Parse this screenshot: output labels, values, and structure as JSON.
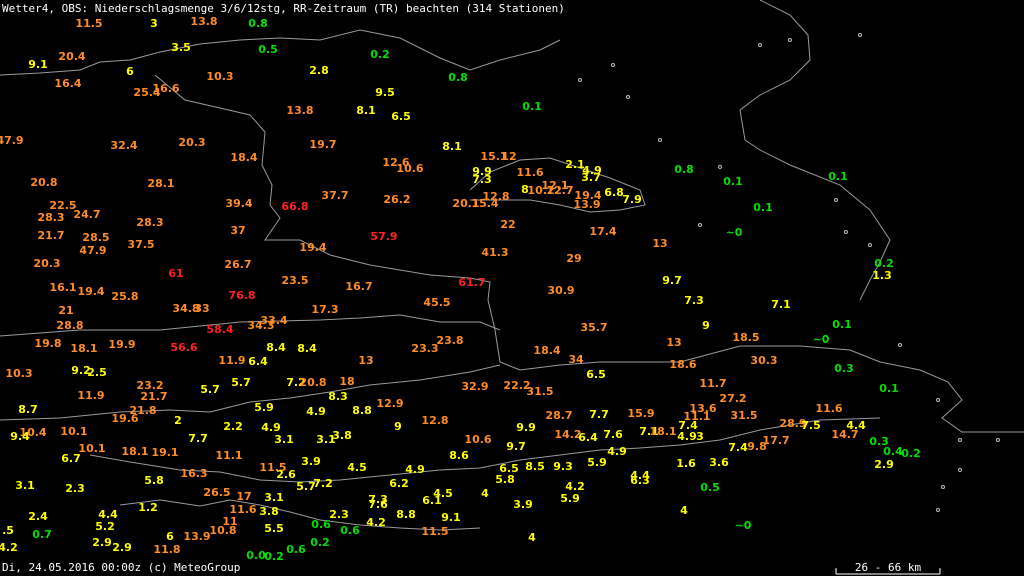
{
  "header": {
    "title": "Wetter4, OBS: Niederschlagsmenge 3/6/12stg, RR-Zeitraum (TR) beachten (314 Stationen)"
  },
  "stations": [
    {
      "label": "11.5",
      "color": "#ff8c28"
    },
    {
      "label": "3",
      "color": "#ffff00"
    },
    {
      "label": "13.8",
      "color": "#ff8c28"
    },
    {
      "label": "0.8",
      "color": "#00e000"
    },
    {
      "label": "3.5",
      "color": "#ffff00"
    },
    {
      "label": "0.5",
      "color": "#00e000"
    },
    {
      "label": "0.2",
      "color": "#00e000"
    },
    {
      "label": "20.4",
      "color": "#ff8c28"
    },
    {
      "label": "9.1",
      "color": "#ffff00"
    },
    {
      "label": "6",
      "color": "#ffff00"
    },
    {
      "label": "10.3",
      "color": "#ff8c28"
    },
    {
      "label": "2.8",
      "color": "#ffff00"
    },
    {
      "label": "0.8",
      "color": "#00e000"
    },
    {
      "label": "16.4",
      "color": "#ff8c28"
    },
    {
      "label": "25.4",
      "color": "#ff8c28"
    },
    {
      "label": "16.6",
      "color": "#ff8c28"
    },
    {
      "label": "9.5",
      "color": "#ffff00"
    },
    {
      "label": "13.8",
      "color": "#ff8c28"
    },
    {
      "label": "8.1",
      "color": "#ffff00"
    },
    {
      "label": "6.5",
      "color": "#ffff00"
    },
    {
      "label": "0.1",
      "color": "#00e000"
    },
    {
      "label": "47.9",
      "color": "#ff8c28"
    },
    {
      "label": "32.4",
      "color": "#ff8c28"
    },
    {
      "label": "20.3",
      "color": "#ff8c28"
    },
    {
      "label": "19.7",
      "color": "#ff8c28"
    },
    {
      "label": "8.1",
      "color": "#ffff00"
    },
    {
      "label": "18.4",
      "color": "#ff8c28"
    },
    {
      "label": "12.6",
      "color": "#ff8c28"
    },
    {
      "label": "10.6",
      "color": "#ff8c28"
    },
    {
      "label": "15.1",
      "color": "#ff8c28"
    },
    {
      "label": "12",
      "color": "#ff8c28"
    },
    {
      "label": "2.1",
      "color": "#ffff00"
    },
    {
      "label": "4.9",
      "color": "#ffff00"
    },
    {
      "label": "3.7",
      "color": "#ffff00"
    },
    {
      "label": "0.8",
      "color": "#00e000"
    },
    {
      "label": "9.9",
      "color": "#ffff00"
    },
    {
      "label": "7.3",
      "color": "#ffff00"
    },
    {
      "label": "11.6",
      "color": "#ff8c28"
    },
    {
      "label": "0.1",
      "color": "#00e000"
    },
    {
      "label": "0.1",
      "color": "#00e000"
    },
    {
      "label": "20.8",
      "color": "#ff8c28"
    },
    {
      "label": "28.1",
      "color": "#ff8c28"
    },
    {
      "label": "12.1",
      "color": "#ff8c28"
    },
    {
      "label": "8",
      "color": "#ffff00"
    },
    {
      "label": "10.2",
      "color": "#ff8c28"
    },
    {
      "label": "12.7",
      "color": "#ff8c28"
    },
    {
      "label": "12.8",
      "color": "#ff8c28"
    },
    {
      "label": "19.4",
      "color": "#ff8c28"
    },
    {
      "label": "6.8",
      "color": "#ffff00"
    },
    {
      "label": "7.9",
      "color": "#ffff00"
    },
    {
      "label": "37.7",
      "color": "#ff8c28"
    },
    {
      "label": "26.2",
      "color": "#ff8c28"
    },
    {
      "label": "20.1",
      "color": "#ff8c28"
    },
    {
      "label": "15.4",
      "color": "#ff8c28"
    },
    {
      "label": "13.9",
      "color": "#ff8c28"
    },
    {
      "label": "0.1",
      "color": "#00e000"
    },
    {
      "label": "22.5",
      "color": "#ff8c28"
    },
    {
      "label": "39.4",
      "color": "#ff8c28"
    },
    {
      "label": "66.8",
      "color": "#ff2020"
    },
    {
      "label": "28.3",
      "color": "#ff8c28"
    },
    {
      "label": "24.7",
      "color": "#ff8c28"
    },
    {
      "label": "28.3",
      "color": "#ff8c28"
    },
    {
      "label": "22",
      "color": "#ff8c28"
    },
    {
      "label": "17.4",
      "color": "#ff8c28"
    },
    {
      "label": "37",
      "color": "#ff8c28"
    },
    {
      "label": "~0",
      "color": "#00e000"
    },
    {
      "label": "21.7",
      "color": "#ff8c28"
    },
    {
      "label": "28.5",
      "color": "#ff8c28"
    },
    {
      "label": "57.9",
      "color": "#ff2020"
    },
    {
      "label": "13",
      "color": "#ff8c28"
    },
    {
      "label": "37.5",
      "color": "#ff8c28"
    },
    {
      "label": "47.9",
      "color": "#ff8c28"
    },
    {
      "label": "19.4",
      "color": "#ff8c28"
    },
    {
      "label": "41.3",
      "color": "#ff8c28"
    },
    {
      "label": "29",
      "color": "#ff8c28"
    },
    {
      "label": "0.2",
      "color": "#00e000"
    },
    {
      "label": "20.3",
      "color": "#ff8c28"
    },
    {
      "label": "26.7",
      "color": "#ff8c28"
    },
    {
      "label": "61",
      "color": "#ff2020"
    },
    {
      "label": "9.7",
      "color": "#ffff00"
    },
    {
      "label": "1.3",
      "color": "#ffff00"
    },
    {
      "label": "23.5",
      "color": "#ff8c28"
    },
    {
      "label": "61.7",
      "color": "#ff2020"
    },
    {
      "label": "16.1",
      "color": "#ff8c28"
    },
    {
      "label": "19.4",
      "color": "#ff8c28"
    },
    {
      "label": "16.7",
      "color": "#ff8c28"
    },
    {
      "label": "30.9",
      "color": "#ff8c28"
    },
    {
      "label": "25.8",
      "color": "#ff8c28"
    },
    {
      "label": "76.8",
      "color": "#ff2020"
    },
    {
      "label": "45.5",
      "color": "#ff8c28"
    },
    {
      "label": "7.3",
      "color": "#ffff00"
    },
    {
      "label": "7.1",
      "color": "#ffff00"
    },
    {
      "label": "21",
      "color": "#ff8c28"
    },
    {
      "label": "34.8",
      "color": "#ff8c28"
    },
    {
      "label": "33",
      "color": "#ff8c28"
    },
    {
      "label": "17.3",
      "color": "#ff8c28"
    },
    {
      "label": "28.8",
      "color": "#ff8c28"
    },
    {
      "label": "33.4",
      "color": "#ff8c28"
    },
    {
      "label": "34.3",
      "color": "#ff8c28"
    },
    {
      "label": "58.4",
      "color": "#ff2020"
    },
    {
      "label": "35.7",
      "color": "#ff8c28"
    },
    {
      "label": "9",
      "color": "#ffff00"
    },
    {
      "label": "0.1",
      "color": "#00e000"
    },
    {
      "label": "19.8",
      "color": "#ff8c28"
    },
    {
      "label": "18.1",
      "color": "#ff8c28"
    },
    {
      "label": "19.9",
      "color": "#ff8c28"
    },
    {
      "label": "56.6",
      "color": "#ff2020"
    },
    {
      "label": "8.4",
      "color": "#ffff00"
    },
    {
      "label": "8.4",
      "color": "#ffff00"
    },
    {
      "label": "23.8",
      "color": "#ff8c28"
    },
    {
      "label": "23.3",
      "color": "#ff8c28"
    },
    {
      "label": "13",
      "color": "#ff8c28"
    },
    {
      "label": "18.5",
      "color": "#ff8c28"
    },
    {
      "label": "~0",
      "color": "#00e000"
    },
    {
      "label": "18.4",
      "color": "#ff8c28"
    },
    {
      "label": "11.9",
      "color": "#ff8c28"
    },
    {
      "label": "6.4",
      "color": "#ffff00"
    },
    {
      "label": "13",
      "color": "#ff8c28"
    },
    {
      "label": "34",
      "color": "#ff8c28"
    },
    {
      "label": "18.6",
      "color": "#ff8c28"
    },
    {
      "label": "30.3",
      "color": "#ff8c28"
    },
    {
      "label": "0.3",
      "color": "#00e000"
    },
    {
      "label": "10.3",
      "color": "#ff8c28"
    },
    {
      "label": "9.2",
      "color": "#ffff00"
    },
    {
      "label": "2.5",
      "color": "#ffff00"
    },
    {
      "label": "6.5",
      "color": "#ffff00"
    },
    {
      "label": "23.2",
      "color": "#ff8c28"
    },
    {
      "label": "5.7",
      "color": "#ffff00"
    },
    {
      "label": "5.7",
      "color": "#ffff00"
    },
    {
      "label": "7.2",
      "color": "#ffff00"
    },
    {
      "label": "20.8",
      "color": "#ff8c28"
    },
    {
      "label": "18",
      "color": "#ff8c28"
    },
    {
      "label": "32.9",
      "color": "#ff8c28"
    },
    {
      "label": "22.2",
      "color": "#ff8c28"
    },
    {
      "label": "31.5",
      "color": "#ff8c28"
    },
    {
      "label": "11.7",
      "color": "#ff8c28"
    },
    {
      "label": "0.1",
      "color": "#00e000"
    },
    {
      "label": "11.9",
      "color": "#ff8c28"
    },
    {
      "label": "21.7",
      "color": "#ff8c28"
    },
    {
      "label": "8.3",
      "color": "#ffff00"
    },
    {
      "label": "27.2",
      "color": "#ff8c28"
    },
    {
      "label": "8.7",
      "color": "#ffff00"
    },
    {
      "label": "21.8",
      "color": "#ff8c28"
    },
    {
      "label": "5.9",
      "color": "#ffff00"
    },
    {
      "label": "4.9",
      "color": "#ffff00"
    },
    {
      "label": "8.8",
      "color": "#ffff00"
    },
    {
      "label": "12.9",
      "color": "#ff8c28"
    },
    {
      "label": "28.7",
      "color": "#ff8c28"
    },
    {
      "label": "7.7",
      "color": "#ffff00"
    },
    {
      "label": "15.9",
      "color": "#ff8c28"
    },
    {
      "label": "13.6",
      "color": "#ff8c28"
    },
    {
      "label": "11.1",
      "color": "#ff8c28"
    },
    {
      "label": "31.5",
      "color": "#ff8c28"
    },
    {
      "label": "11.6",
      "color": "#ff8c28"
    },
    {
      "label": "19.6",
      "color": "#ff8c28"
    },
    {
      "label": "2",
      "color": "#ffff00"
    },
    {
      "label": "12.8",
      "color": "#ff8c28"
    },
    {
      "label": "9",
      "color": "#ffff00"
    },
    {
      "label": "9.9",
      "color": "#ffff00"
    },
    {
      "label": "7.4",
      "color": "#ffff00"
    },
    {
      "label": "28.9",
      "color": "#ff8c28"
    },
    {
      "label": "7.5",
      "color": "#ffff00"
    },
    {
      "label": "4.4",
      "color": "#ffff00"
    },
    {
      "label": "10.4",
      "color": "#ff8c28"
    },
    {
      "label": "9.4",
      "color": "#ffff00"
    },
    {
      "label": "10.1",
      "color": "#ff8c28"
    },
    {
      "label": "2.2",
      "color": "#ffff00"
    },
    {
      "label": "4.9",
      "color": "#ffff00"
    },
    {
      "label": "7.7",
      "color": "#ffff00"
    },
    {
      "label": "3.1",
      "color": "#ffff00"
    },
    {
      "label": "3.1",
      "color": "#ffff00"
    },
    {
      "label": "3.8",
      "color": "#ffff00"
    },
    {
      "label": "10.6",
      "color": "#ff8c28"
    },
    {
      "label": "14.2",
      "color": "#ff8c28"
    },
    {
      "label": "6.4",
      "color": "#ffff00"
    },
    {
      "label": "7.6",
      "color": "#ffff00"
    },
    {
      "label": "7.1",
      "color": "#ffff00"
    },
    {
      "label": "18.1",
      "color": "#ff8c28"
    },
    {
      "label": "4.9",
      "color": "#ffff00"
    },
    {
      "label": "3",
      "color": "#ffff00"
    },
    {
      "label": "17.7",
      "color": "#ff8c28"
    },
    {
      "label": "14.7",
      "color": "#ff8c28"
    },
    {
      "label": "0.3",
      "color": "#00e000"
    },
    {
      "label": "10.1",
      "color": "#ff8c28"
    },
    {
      "label": "18.1",
      "color": "#ff8c28"
    },
    {
      "label": "19.1",
      "color": "#ff8c28"
    },
    {
      "label": "9.7",
      "color": "#ffff00"
    },
    {
      "label": "4.9",
      "color": "#ffff00"
    },
    {
      "label": "7.4",
      "color": "#ffff00"
    },
    {
      "label": "9.8",
      "color": "#ff8c28"
    },
    {
      "label": "0.4",
      "color": "#00e000"
    },
    {
      "label": "0.2",
      "color": "#00e000"
    },
    {
      "label": "6.7",
      "color": "#ffff00"
    },
    {
      "label": "11.1",
      "color": "#ff8c28"
    },
    {
      "label": "8.6",
      "color": "#ffff00"
    },
    {
      "label": "3.9",
      "color": "#ffff00"
    },
    {
      "label": "1.6",
      "color": "#ffff00"
    },
    {
      "label": "3.6",
      "color": "#ffff00"
    },
    {
      "label": "2.9",
      "color": "#ffff00"
    },
    {
      "label": "11.5",
      "color": "#ff8c28"
    },
    {
      "label": "4.5",
      "color": "#ffff00"
    },
    {
      "label": "4.9",
      "color": "#ffff00"
    },
    {
      "label": "6.5",
      "color": "#ffff00"
    },
    {
      "label": "8.5",
      "color": "#ffff00"
    },
    {
      "label": "9.3",
      "color": "#ffff00"
    },
    {
      "label": "5.9",
      "color": "#ffff00"
    },
    {
      "label": "2.6",
      "color": "#ffff00"
    },
    {
      "label": "16.3",
      "color": "#ff8c28"
    },
    {
      "label": "5.8",
      "color": "#ffff00"
    },
    {
      "label": "4.4",
      "color": "#ffff00"
    },
    {
      "label": "6.3",
      "color": "#ffff00"
    },
    {
      "label": "5.8",
      "color": "#ffff00"
    },
    {
      "label": "3.1",
      "color": "#ffff00"
    },
    {
      "label": "2.3",
      "color": "#ffff00"
    },
    {
      "label": "7.2",
      "color": "#ffff00"
    },
    {
      "label": "5.7",
      "color": "#ffff00"
    },
    {
      "label": "6.2",
      "color": "#ffff00"
    },
    {
      "label": "4.2",
      "color": "#ffff00"
    },
    {
      "label": "26.5",
      "color": "#ff8c28"
    },
    {
      "label": "17",
      "color": "#ff8c28"
    },
    {
      "label": "3.1",
      "color": "#ffff00"
    },
    {
      "label": "4.5",
      "color": "#ffff00"
    },
    {
      "label": "4",
      "color": "#ffff00"
    },
    {
      "label": "6.1",
      "color": "#ffff00"
    },
    {
      "label": "5.9",
      "color": "#ffff00"
    },
    {
      "label": "0.5",
      "color": "#00e000"
    },
    {
      "label": "7.3",
      "color": "#ffff00"
    },
    {
      "label": "7.6",
      "color": "#ffff00"
    },
    {
      "label": "1.2",
      "color": "#ffff00"
    },
    {
      "label": "11.6",
      "color": "#ff8c28"
    },
    {
      "label": "3.8",
      "color": "#ffff00"
    },
    {
      "label": "2.3",
      "color": "#ffff00"
    },
    {
      "label": "8.8",
      "color": "#ffff00"
    },
    {
      "label": "3.9",
      "color": "#ffff00"
    },
    {
      "label": "4",
      "color": "#ffff00"
    },
    {
      "label": "2.4",
      "color": "#ffff00"
    },
    {
      "label": "4.4",
      "color": "#ffff00"
    },
    {
      "label": "11",
      "color": "#ff8c28"
    },
    {
      "label": "9.1",
      "color": "#ffff00"
    },
    {
      "label": "0.6",
      "color": "#00e000"
    },
    {
      "label": "0.6",
      "color": "#00e000"
    },
    {
      "label": "4.2",
      "color": "#ffff00"
    },
    {
      "label": "~0",
      "color": "#00e000"
    },
    {
      "label": "5.2",
      "color": "#ffff00"
    },
    {
      "label": ".5",
      "color": "#ffff00"
    },
    {
      "label": "0.7",
      "color": "#00e000"
    },
    {
      "label": "10.8",
      "color": "#ff8c28"
    },
    {
      "label": "5.5",
      "color": "#ffff00"
    },
    {
      "label": "11.5",
      "color": "#ff8c28"
    },
    {
      "label": "6",
      "color": "#ffff00"
    },
    {
      "label": "13.9",
      "color": "#ff8c28"
    },
    {
      "label": "4",
      "color": "#ffff00"
    },
    {
      "label": "0.2",
      "color": "#00e000"
    },
    {
      "label": "2.9",
      "color": "#ffff00"
    },
    {
      "label": "2.9",
      "color": "#ffff00"
    },
    {
      "label": "4.2",
      "color": "#ffff00"
    },
    {
      "label": "11.8",
      "color": "#ff8c28"
    },
    {
      "label": "0.6",
      "color": "#00e000"
    },
    {
      "label": "0.0",
      "color": "#00e000"
    },
    {
      "label": "0.2",
      "color": "#00e000"
    }
  ],
  "footer": {
    "credit": "Di, 24.05.2016 00:00z (c) MeteoGroup",
    "scale": "26 - 66 km"
  }
}
